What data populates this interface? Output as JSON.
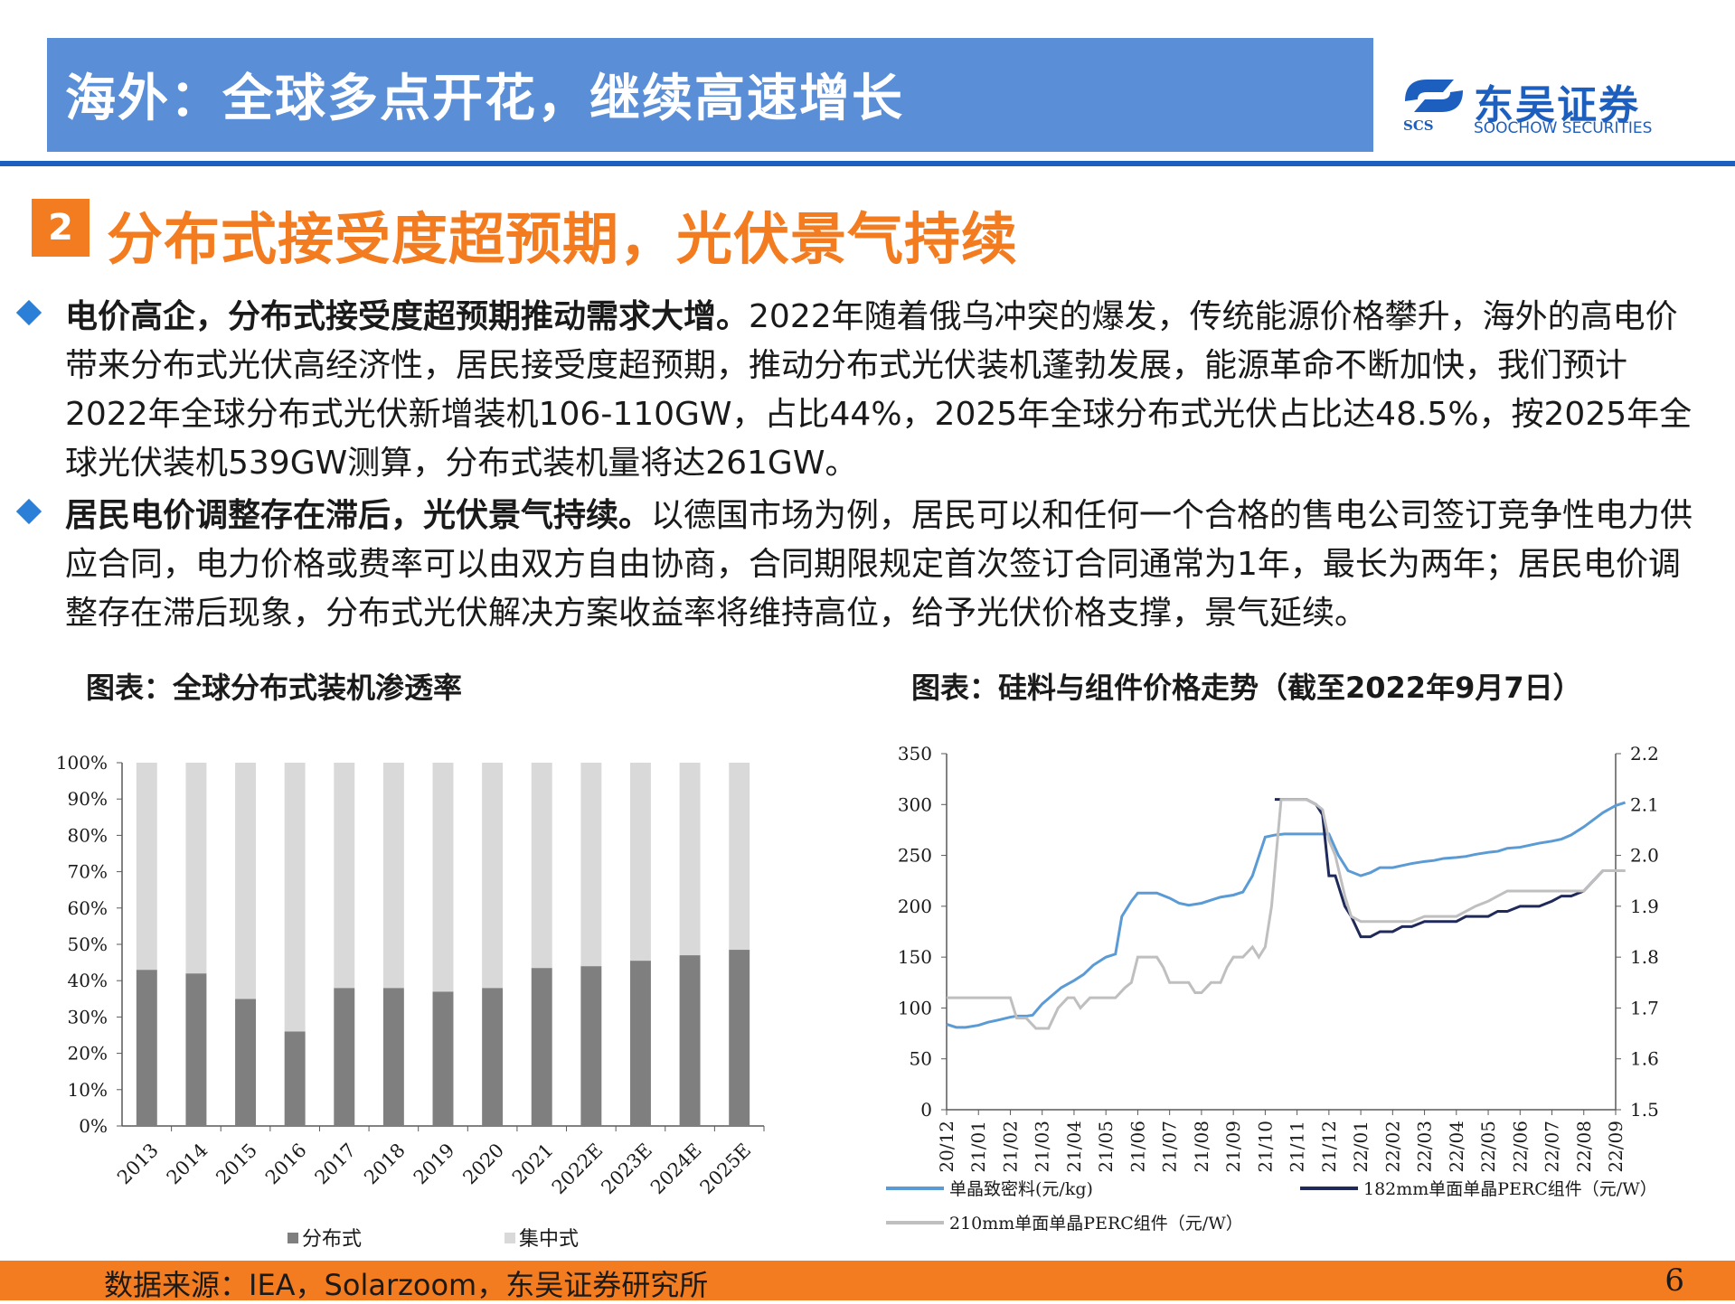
{
  "header": {
    "title": "海外：全球多点开花，继续高速增长",
    "logo_cn": "东吴证券",
    "logo_abbr": "SCS",
    "logo_en": "SOOCHOW SECURITIES",
    "bar_color": "#5a8fd8",
    "brand_color": "#1d5fbf"
  },
  "section": {
    "number": "2",
    "title": "分布式接受度超预期，光伏景气持续",
    "accent_color": "#f27c1f"
  },
  "bullets": [
    {
      "icon": "diamond-icon",
      "bold": "电价高企，分布式接受度超预期推动需求大增。",
      "text": "2022年随着俄乌冲突的爆发，传统能源价格攀升，海外的高电价带来分布式光伏高经济性，居民接受度超预期，推动分布式光伏装机蓬勃发展，能源革命不断加快，我们预计2022年全球分布式光伏新增装机106-110GW，占比44%，2025年全球分布式光伏占比达48.5%，按2025年全球光伏装机539GW测算，分布式装机量将达261GW。"
    },
    {
      "icon": "diamond-icon",
      "bold": "居民电价调整存在滞后，光伏景气持续。",
      "text": "以德国市场为例，居民可以和任何一个合格的售电公司签订竞争性电力供应合同，电力价格或费率可以由双方自由协商，合同期限规定首次签订合同通常为1年，最长为两年；居民电价调整存在滞后现象，分布式光伏解决方案收益率将维持高位，给予光伏价格支撑，景气延续。"
    }
  ],
  "chart_data": [
    {
      "type": "bar",
      "stacked": true,
      "title": "图表：全球分布式装机渗透率",
      "categories": [
        "2013",
        "2014",
        "2015",
        "2016",
        "2017",
        "2018",
        "2019",
        "2020",
        "2021",
        "2022E",
        "2023E",
        "2024E",
        "2025E"
      ],
      "series": [
        {
          "name": "分布式",
          "color": "#7f7f7f",
          "values": [
            43,
            42,
            35,
            26,
            38,
            38,
            37,
            38,
            43.5,
            44,
            45.5,
            47,
            48.5
          ]
        },
        {
          "name": "集中式",
          "color": "#d9d9d9",
          "values": [
            57,
            58,
            65,
            74,
            62,
            62,
            63,
            62,
            56.5,
            56,
            54.5,
            53,
            51.5
          ]
        }
      ],
      "ylim": [
        0,
        100
      ],
      "yticks": [
        "0%",
        "10%",
        "20%",
        "30%",
        "40%",
        "50%",
        "60%",
        "70%",
        "80%",
        "90%",
        "100%"
      ],
      "legend": "bottom"
    },
    {
      "type": "line",
      "title": "图表：硅料与组件价格走势（截至2022年9月7日）",
      "x": [
        "20/12",
        "21/01",
        "21/02",
        "21/03",
        "21/04",
        "21/05",
        "21/06",
        "21/07",
        "21/08",
        "21/09",
        "21/10",
        "21/11",
        "21/12",
        "22/01",
        "22/02",
        "22/03",
        "22/04",
        "22/05",
        "22/06",
        "22/07",
        "22/08",
        "22/09"
      ],
      "ylim_left": [
        0,
        350
      ],
      "yticks_left": [
        "0",
        "50",
        "100",
        "150",
        "200",
        "250",
        "300",
        "350"
      ],
      "ylim_right": [
        1.5,
        2.2
      ],
      "yticks_right": [
        "1.5",
        "1.6",
        "1.7",
        "1.8",
        "1.9",
        "2.0",
        "2.1",
        "2.2"
      ],
      "legend": "bottom",
      "series": [
        {
          "name": "单晶致密料(元/kg)",
          "axis": "left",
          "color": "#5b9bd5",
          "x": [
            0,
            0.3,
            0.6,
            1,
            1.3,
            1.6,
            2,
            2.2,
            2.5,
            2.7,
            3,
            3.3,
            3.6,
            4,
            4.3,
            4.6,
            5,
            5.3,
            5.5,
            5.8,
            6,
            6.3,
            6.6,
            7,
            7.3,
            7.6,
            8,
            8.3,
            8.6,
            9,
            9.3,
            9.6,
            10,
            10.3,
            10.6,
            11,
            11.3,
            11.6,
            12,
            12.3,
            12.6,
            13,
            13.3,
            13.6,
            14,
            14.3,
            14.6,
            15,
            15.3,
            15.6,
            16,
            16.3,
            16.6,
            17,
            17.3,
            17.6,
            18,
            18.3,
            18.6,
            19,
            19.3,
            19.6,
            20,
            20.3,
            20.6,
            21,
            21.3
          ],
          "y": [
            84,
            81,
            81,
            83,
            86,
            88,
            91,
            92,
            92,
            93,
            104,
            112,
            120,
            127,
            133,
            142,
            150,
            153,
            190,
            205,
            213,
            213,
            213,
            208,
            203,
            201,
            203,
            206,
            209,
            211,
            214,
            230,
            268,
            270,
            271,
            271,
            271,
            271,
            271,
            250,
            235,
            230,
            233,
            238,
            238,
            240,
            242,
            244,
            245,
            247,
            248,
            249,
            251,
            253,
            254,
            257,
            258,
            260,
            262,
            264,
            266,
            270,
            278,
            285,
            292,
            299,
            302
          ]
        },
        {
          "name": "182mm单面单晶PERC组件（元/W）",
          "axis": "right",
          "color": "#1f2a5a",
          "x": [
            10.3,
            10.6,
            11,
            11.3,
            11.6,
            11.8,
            12,
            12.2,
            12.5,
            12.7,
            13,
            13.3,
            13.6,
            14,
            14.3,
            14.6,
            15,
            15.3,
            15.6,
            16,
            16.3,
            16.6,
            17,
            17.3,
            17.6,
            18,
            18.3,
            18.6,
            19,
            19.3,
            19.6,
            20,
            20.3,
            20.6,
            21,
            21.3
          ],
          "y": [
            2.11,
            2.11,
            2.11,
            2.11,
            2.1,
            2.08,
            1.96,
            1.96,
            1.9,
            1.88,
            1.84,
            1.84,
            1.85,
            1.85,
            1.86,
            1.86,
            1.87,
            1.87,
            1.87,
            1.87,
            1.88,
            1.88,
            1.88,
            1.89,
            1.89,
            1.9,
            1.9,
            1.9,
            1.91,
            1.92,
            1.92,
            1.93,
            1.95,
            1.97,
            1.97,
            1.97
          ]
        },
        {
          "name": "210mm单面单晶PERC组件（元/W）",
          "axis": "right",
          "color": "#bfbfbf",
          "x": [
            0,
            0.5,
            1,
            1.5,
            2,
            2.2,
            2.5,
            2.8,
            3,
            3.2,
            3.5,
            3.8,
            4,
            4.2,
            4.5,
            5,
            5.3,
            5.6,
            5.8,
            6,
            6.3,
            6.6,
            6.8,
            7,
            7.3,
            7.6,
            7.8,
            8,
            8.3,
            8.6,
            8.8,
            9,
            9.3,
            9.6,
            9.8,
            10,
            10.2,
            10.5,
            11,
            11.3,
            11.6,
            11.8,
            12,
            12.2,
            12.5,
            12.7,
            13,
            13.3,
            13.6,
            14,
            14.3,
            14.6,
            15,
            15.3,
            15.6,
            16,
            16.3,
            16.6,
            17,
            17.3,
            17.6,
            18,
            18.3,
            18.6,
            19,
            19.3,
            19.6,
            20,
            20.3,
            20.6,
            21,
            21.3
          ],
          "y": [
            1.72,
            1.72,
            1.72,
            1.72,
            1.72,
            1.68,
            1.68,
            1.66,
            1.66,
            1.66,
            1.7,
            1.72,
            1.72,
            1.7,
            1.72,
            1.72,
            1.72,
            1.74,
            1.75,
            1.8,
            1.8,
            1.8,
            1.78,
            1.75,
            1.75,
            1.75,
            1.73,
            1.73,
            1.75,
            1.75,
            1.78,
            1.8,
            1.8,
            1.82,
            1.8,
            1.82,
            1.9,
            2.11,
            2.11,
            2.11,
            2.1,
            2.09,
            2.03,
            2.0,
            1.92,
            1.88,
            1.87,
            1.87,
            1.87,
            1.87,
            1.87,
            1.87,
            1.88,
            1.88,
            1.88,
            1.88,
            1.89,
            1.9,
            1.91,
            1.92,
            1.93,
            1.93,
            1.93,
            1.93,
            1.93,
            1.93,
            1.93,
            1.93,
            1.95,
            1.97,
            1.97,
            1.97
          ]
        }
      ]
    }
  ],
  "footer": {
    "source": "数据来源：IEA，Solarzoom，东吴证券研究所",
    "page_number": "6",
    "bar_color": "#f27c1f"
  }
}
